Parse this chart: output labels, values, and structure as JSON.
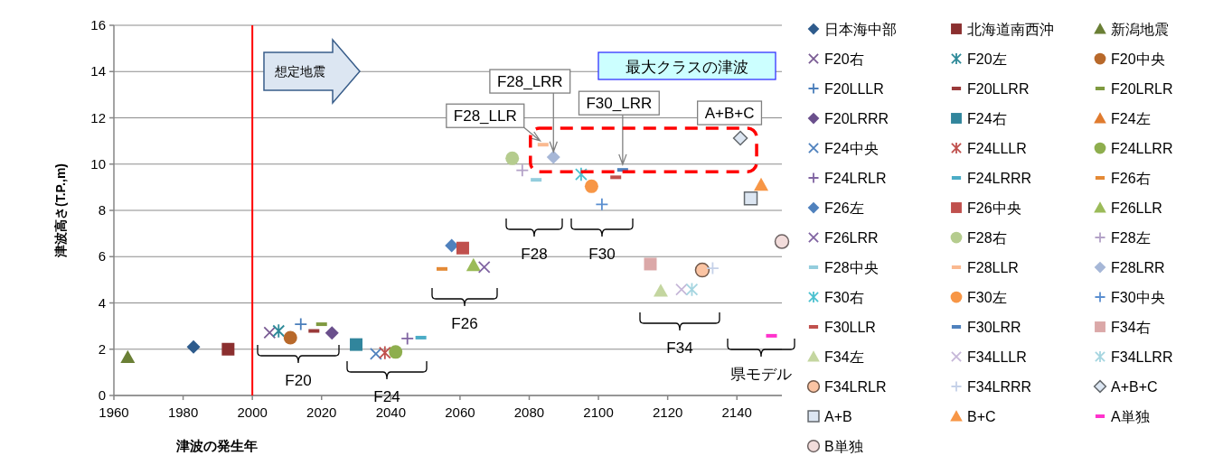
{
  "chart_data": {
    "type": "scatter",
    "xlabel": "津波の発生年",
    "ylabel": "津波高さ(T.P.,m)",
    "xlim": [
      1960,
      2153
    ],
    "ylim": [
      0,
      16
    ],
    "xticks": [
      1960,
      1980,
      2000,
      2020,
      2040,
      2060,
      2080,
      2100,
      2120,
      2140
    ],
    "yticks": [
      0,
      2,
      4,
      6,
      8,
      10,
      12,
      14,
      16
    ],
    "grid": "y",
    "legend": "right",
    "ref_lines": [
      {
        "axis": "x",
        "value": 2000,
        "color": "#ff0000"
      }
    ],
    "series": [
      {
        "name": "日本海中部",
        "marker": "diamond",
        "color": "#2e5b8c",
        "x": [
          1983
        ],
        "values": [
          2.1
        ]
      },
      {
        "name": "北海道南西沖",
        "marker": "square",
        "color": "#8b2f2f",
        "x": [
          1993
        ],
        "values": [
          2.0
        ]
      },
      {
        "name": "新潟地震",
        "marker": "triangle",
        "color": "#6a7f35",
        "x": [
          1964
        ],
        "values": [
          1.65
        ]
      },
      {
        "name": "F20右",
        "marker": "x",
        "color": "#7a5c94",
        "x": [
          2005
        ],
        "values": [
          2.72
        ]
      },
      {
        "name": "F20左",
        "marker": "cross",
        "color": "#2e8a99",
        "x": [
          2007.6
        ],
        "values": [
          2.79
        ]
      },
      {
        "name": "F20中央",
        "marker": "circle",
        "color": "#b8692b",
        "x": [
          2011
        ],
        "values": [
          2.5
        ]
      },
      {
        "name": "F20LLLR",
        "marker": "plus",
        "color": "#4a7ebb",
        "x": [
          2014
        ],
        "values": [
          3.08
        ]
      },
      {
        "name": "F20LLRR",
        "color": "#9a3a3a",
        "x": [
          2017.8
        ],
        "values": [
          2.79
        ]
      },
      {
        "name": "F20LRLR",
        "color": "#7f9a40",
        "x": [
          2020
        ],
        "values": [
          3.08
        ]
      },
      {
        "name": "F20LRRR",
        "marker": "diamond",
        "color": "#6a4f8c",
        "x": [
          2023
        ],
        "values": [
          2.7
        ]
      },
      {
        "name": "F24右",
        "marker": "square",
        "color": "#31859c",
        "x": [
          2030
        ],
        "values": [
          2.2
        ]
      },
      {
        "name": "F24左",
        "marker": "triangle",
        "color": "#e07b2e",
        "x": [
          null
        ],
        "values": [
          null
        ]
      },
      {
        "name": "F24中央",
        "marker": "x",
        "color": "#4f81bd",
        "x": [
          2035.7
        ],
        "values": [
          1.8
        ]
      },
      {
        "name": "F24LLLR",
        "marker": "cross",
        "color": "#c0504d",
        "x": [
          2038.3
        ],
        "values": [
          1.85
        ]
      },
      {
        "name": "F24LLRR",
        "marker": "circle",
        "color": "#8eae4e",
        "x": [
          2041.4
        ],
        "values": [
          1.88
        ]
      },
      {
        "name": "F24LRLR",
        "marker": "plus",
        "color": "#8064a2",
        "x": [
          2044.8
        ],
        "values": [
          2.46
        ]
      },
      {
        "name": "F24LRRR",
        "color": "#4bacc6",
        "x": [
          2048.7
        ],
        "values": [
          2.5
        ]
      },
      {
        "name": "F26右",
        "color": "#e48a36",
        "x": [
          2054.8
        ],
        "values": [
          5.47
        ]
      },
      {
        "name": "F26左",
        "marker": "diamond",
        "color": "#4f81bd",
        "x": [
          2057.6
        ],
        "values": [
          6.48
        ]
      },
      {
        "name": "F26中央",
        "marker": "square",
        "color": "#c0504d",
        "x": [
          2060.8
        ],
        "values": [
          6.37
        ]
      },
      {
        "name": "F26LLR",
        "marker": "triangle",
        "color": "#9bbb59",
        "x": [
          2063.9
        ],
        "values": [
          5.63
        ]
      },
      {
        "name": "F26LRR",
        "marker": "x",
        "color": "#8064a2",
        "x": [
          2067
        ],
        "values": [
          5.55
        ]
      },
      {
        "name": "F28右",
        "marker": "circle",
        "color": "#b5cc8e",
        "x": [
          2075.1
        ],
        "values": [
          10.25
        ]
      },
      {
        "name": "F28左",
        "marker": "plus",
        "color": "#b3a2c7",
        "x": [
          2078
        ],
        "values": [
          9.73
        ]
      },
      {
        "name": "F28中央",
        "color": "#93cddd",
        "x": [
          2082
        ],
        "values": [
          9.32
        ]
      },
      {
        "name": "F28LLR",
        "color": "#fab990",
        "x": [
          2084
        ],
        "values": [
          10.84
        ]
      },
      {
        "name": "F28LRR",
        "marker": "diamond",
        "color": "#a6b7d7",
        "x": [
          2087
        ],
        "values": [
          10.3
        ]
      },
      {
        "name": "F30右",
        "marker": "cross",
        "color": "#4bc1d0",
        "x": [
          2095
        ],
        "values": [
          9.56
        ]
      },
      {
        "name": "F30左",
        "marker": "circle",
        "color": "#f79646",
        "x": [
          2098
        ],
        "values": [
          9.04
        ]
      },
      {
        "name": "F30中央",
        "marker": "plus",
        "color": "#5b8fd0",
        "x": [
          2101
        ],
        "values": [
          8.26
        ]
      },
      {
        "name": "F30LLR",
        "color": "#c0504d",
        "x": [
          2105
        ],
        "values": [
          9.43
        ]
      },
      {
        "name": "F30LRR",
        "color": "#4f81bd",
        "x": [
          2107
        ],
        "values": [
          9.75
        ]
      },
      {
        "name": "F34右",
        "marker": "square",
        "color": "#dba8a8",
        "x": [
          2115
        ],
        "values": [
          5.68
        ]
      },
      {
        "name": "F34左",
        "marker": "triangle",
        "color": "#c4d6a0",
        "x": [
          2118
        ],
        "values": [
          4.52
        ]
      },
      {
        "name": "F34LLLR",
        "marker": "x",
        "color": "#c6b7d8",
        "x": [
          2124
        ],
        "values": [
          4.58
        ]
      },
      {
        "name": "F34LLRR",
        "marker": "cross",
        "color": "#a5d5e0",
        "x": [
          2127
        ],
        "values": [
          4.58
        ]
      },
      {
        "name": "F34LRLR",
        "marker": "circle",
        "color": "#fbc4a3",
        "x": [
          2130
        ],
        "values": [
          5.42
        ]
      },
      {
        "name": "F34LRRR",
        "marker": "plus",
        "color": "#c5d1e8",
        "x": [
          2133
        ],
        "values": [
          5.5
        ]
      },
      {
        "name": "A+B+C",
        "marker": "diamond",
        "color": "#dce6f2",
        "x": [
          2141
        ],
        "values": [
          11.12
        ]
      },
      {
        "name": "A+B",
        "marker": "square",
        "color": "#dce6f2",
        "x": [
          2144
        ],
        "values": [
          8.52
        ]
      },
      {
        "name": "B+C",
        "marker": "triangle",
        "color": "#f79646",
        "x": [
          2147
        ],
        "values": [
          9.1
        ]
      },
      {
        "name": "A単独",
        "color": "#ff33cc",
        "x": [
          2150
        ],
        "values": [
          2.58
        ]
      },
      {
        "name": "B単独",
        "marker": "circle",
        "color": "#f2dcdb",
        "x": [
          2153
        ],
        "values": [
          6.65
        ]
      }
    ],
    "annotations": [
      {
        "text": "F28_LLR",
        "x": 2084,
        "y": 10.84
      },
      {
        "text": "F28_LRR",
        "x": 2087,
        "y": 10.3
      },
      {
        "text": "F30_LRR",
        "x": 2107,
        "y": 9.75
      },
      {
        "text": "A+B+C",
        "x": 2141,
        "y": 11.12
      },
      "F20",
      "F24",
      "F26",
      "F28",
      "F30",
      "F34",
      "県モデル",
      "想定地震",
      "最大クラスの津波"
    ]
  }
}
